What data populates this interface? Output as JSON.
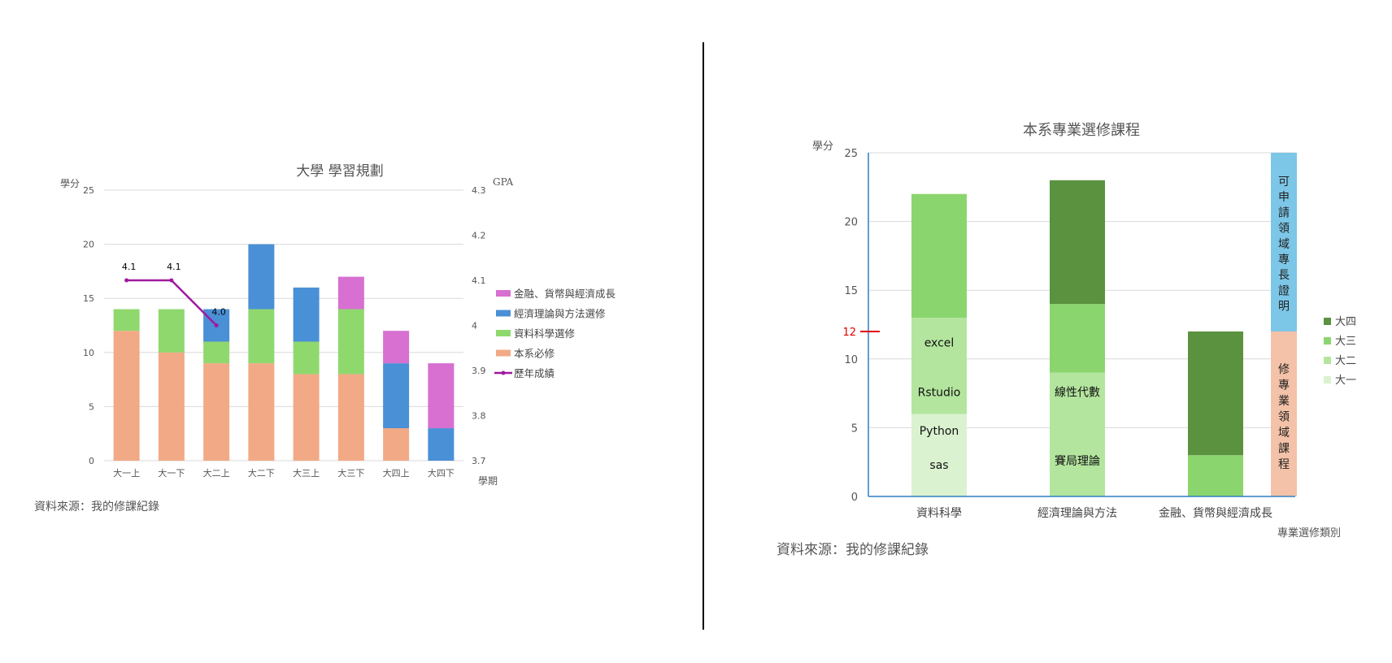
{
  "colors": {
    "required": "#f2a985",
    "ds": "#8fd86e",
    "econ": "#4a90d6",
    "fin": "#d770d0",
    "gpa": "#a0199e",
    "y1": "#dbf2d0",
    "y2": "#b3e59e",
    "y3": "#8bd56e",
    "y4": "#5a9240",
    "cert": "#7cc6e7",
    "program": "#f4c2a8",
    "grid": "#d9d9d9",
    "axis": "#2f7fc0",
    "divider": "#000000",
    "marker": "#e00000"
  },
  "left_chart": {
    "chart_data": {
      "type": "bar",
      "stacked": true,
      "title": "大學 學習規劃",
      "ylabel": "學分",
      "y2label": "GPA",
      "xlabel": "學期",
      "categories": [
        "大一上",
        "大一下",
        "大二上",
        "大二下",
        "大三上",
        "大三下",
        "大四上",
        "大四下"
      ],
      "ylim": [
        0,
        25
      ],
      "yticks": [
        0,
        5,
        10,
        15,
        20,
        25
      ],
      "y2lim": [
        3.7,
        4.3
      ],
      "y2ticks": [
        "3.7",
        "3.8",
        "3.9",
        "4",
        "4.1",
        "4.2",
        "4.3"
      ],
      "series": [
        {
          "name": "本系必修",
          "color_key": "required",
          "values": [
            12,
            10,
            9,
            9,
            8,
            8,
            3,
            0
          ]
        },
        {
          "name": "資料科學選修",
          "color_key": "ds",
          "values": [
            2,
            4,
            2,
            5,
            3,
            6,
            0,
            0
          ]
        },
        {
          "name": "經濟理論與方法選修",
          "color_key": "econ",
          "values": [
            0,
            0,
            3,
            6,
            5,
            0,
            6,
            3
          ]
        },
        {
          "name": "金融、貨幣與經濟成長",
          "color_key": "fin",
          "values": [
            0,
            0,
            0,
            0,
            0,
            3,
            3,
            6
          ]
        }
      ],
      "line": {
        "name": "歷年成績",
        "values": [
          4.1,
          4.1,
          4.0
        ],
        "labels": [
          "4.1",
          "4.1",
          "4.0"
        ]
      },
      "legend": [
        "金融、貨幣與經濟成長",
        "經濟理論與方法選修",
        "資料科學選修",
        "本系必修",
        "歷年成績"
      ],
      "legend_position": "right"
    },
    "source": "資料來源：我的修課紀錄"
  },
  "right_chart": {
    "chart_data": {
      "type": "bar",
      "stacked": true,
      "title": "本系專業選修課程",
      "ylabel": "學分",
      "xlabel": "專業選修類別",
      "categories": [
        "資料科學",
        "經濟理論與方法",
        "金融、貨幣與經濟成長"
      ],
      "ylim": [
        0,
        25
      ],
      "yticks": [
        0,
        5,
        10,
        15,
        20,
        25
      ],
      "series": [
        {
          "name": "大一",
          "color_key": "y1",
          "values": [
            6,
            0,
            0
          ]
        },
        {
          "name": "大二",
          "color_key": "y2",
          "values": [
            7,
            9,
            0
          ]
        },
        {
          "name": "大三",
          "color_key": "y3",
          "values": [
            9,
            5,
            3
          ]
        },
        {
          "name": "大四",
          "color_key": "y4",
          "values": [
            0,
            9,
            9
          ]
        }
      ],
      "legend": [
        "大四",
        "大三",
        "大二",
        "大一"
      ],
      "legend_position": "right",
      "threshold": {
        "value": 12,
        "label": "12"
      },
      "course_labels": [
        {
          "cat": 0,
          "y": 11.2,
          "text": "excel"
        },
        {
          "cat": 0,
          "y": 7.6,
          "text": "Rstudio"
        },
        {
          "cat": 0,
          "y": 4.8,
          "text": "Python"
        },
        {
          "cat": 0,
          "y": 2.3,
          "text": "sas"
        },
        {
          "cat": 1,
          "y": 7.6,
          "text": "線性代數"
        },
        {
          "cat": 1,
          "y": 2.6,
          "text": "賽局理論"
        }
      ],
      "side_bar": {
        "upper_text": "可申請領域專長證明",
        "upper_range": [
          12,
          25
        ],
        "lower_text": "修專業領域課程",
        "lower_range": [
          0,
          12
        ]
      }
    },
    "source": "資料來源：我的修課紀錄"
  }
}
